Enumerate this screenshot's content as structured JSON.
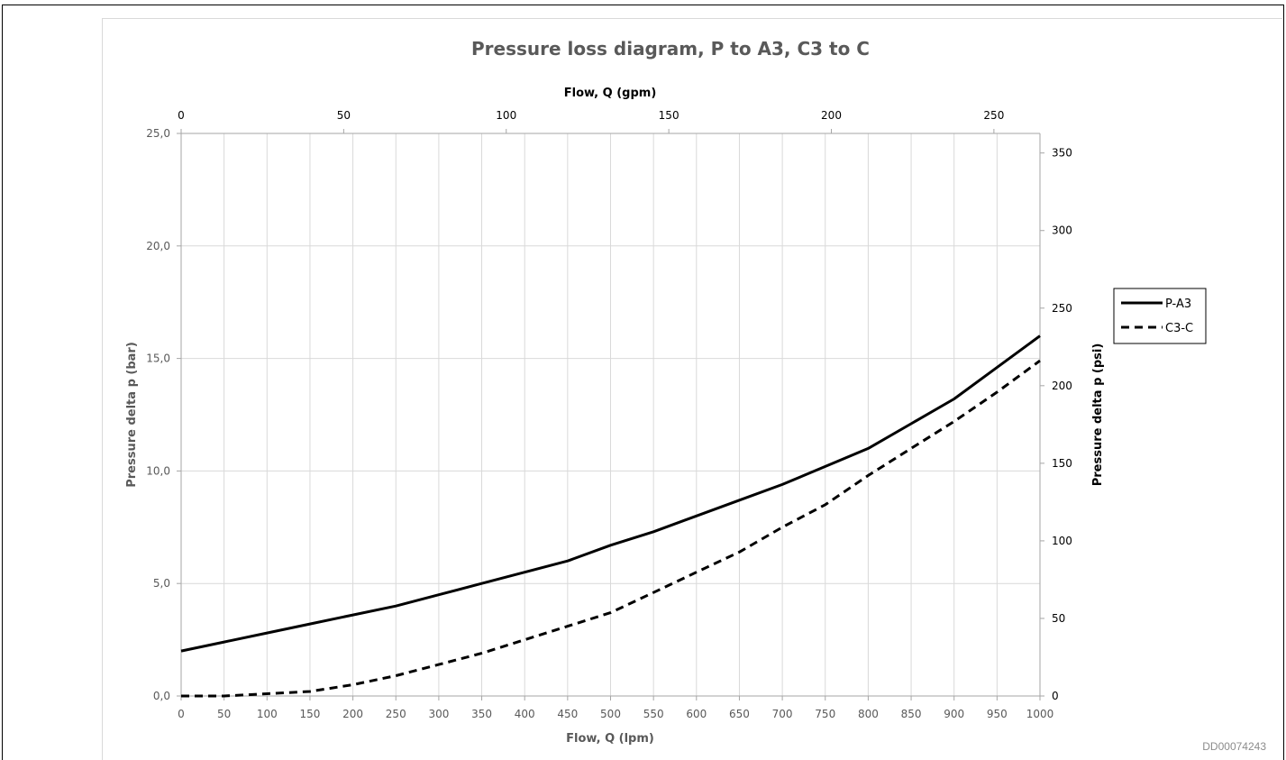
{
  "doc_id": "DD00074243",
  "chart_data": {
    "type": "line",
    "title": "Pressure loss diagram, P to A3, C3 to C",
    "xlabel": "Flow, Q (lpm)",
    "x2label": "Flow, Q (gpm)",
    "ylabel": "Pressure delta p (bar)",
    "y2label": "Pressure delta p (psi)",
    "xlim": [
      0,
      1000
    ],
    "ylim": [
      0,
      25
    ],
    "x2lim": [
      0,
      264.17
    ],
    "y2lim": [
      0,
      362.6
    ],
    "x_ticks": [
      "0",
      "50",
      "100",
      "150",
      "200",
      "250",
      "300",
      "350",
      "400",
      "450",
      "500",
      "550",
      "600",
      "650",
      "700",
      "750",
      "800",
      "850",
      "900",
      "950",
      "1000"
    ],
    "y_ticks": [
      "0,0",
      "5,0",
      "10,0",
      "15,0",
      "20,0",
      "25,0"
    ],
    "x2_ticks": [
      "0",
      "50",
      "100",
      "150",
      "200",
      "250"
    ],
    "y2_ticks": [
      "0",
      "50",
      "100",
      "150",
      "200",
      "250",
      "300",
      "350"
    ],
    "grid": true,
    "legend_position": "right",
    "series": [
      {
        "name": "P-A3",
        "style": "solid",
        "color": "#000000",
        "x": [
          0,
          50,
          100,
          150,
          200,
          250,
          300,
          350,
          400,
          450,
          500,
          550,
          600,
          650,
          700,
          750,
          800,
          850,
          900,
          950,
          1000
        ],
        "y": [
          2.0,
          2.4,
          2.8,
          3.2,
          3.6,
          4.0,
          4.5,
          5.0,
          5.5,
          6.0,
          6.7,
          7.3,
          8.0,
          8.7,
          9.4,
          10.2,
          11.0,
          12.1,
          13.2,
          14.6,
          16.0
        ]
      },
      {
        "name": "C3-C",
        "style": "dashed",
        "color": "#000000",
        "x": [
          0,
          50,
          100,
          150,
          200,
          250,
          300,
          350,
          400,
          450,
          500,
          550,
          600,
          650,
          700,
          750,
          800,
          850,
          900,
          950,
          1000
        ],
        "y": [
          0.0,
          0.0,
          0.1,
          0.2,
          0.5,
          0.9,
          1.4,
          1.9,
          2.5,
          3.1,
          3.7,
          4.6,
          5.5,
          6.4,
          7.5,
          8.5,
          9.8,
          11.0,
          12.2,
          13.5,
          14.9
        ]
      }
    ]
  }
}
